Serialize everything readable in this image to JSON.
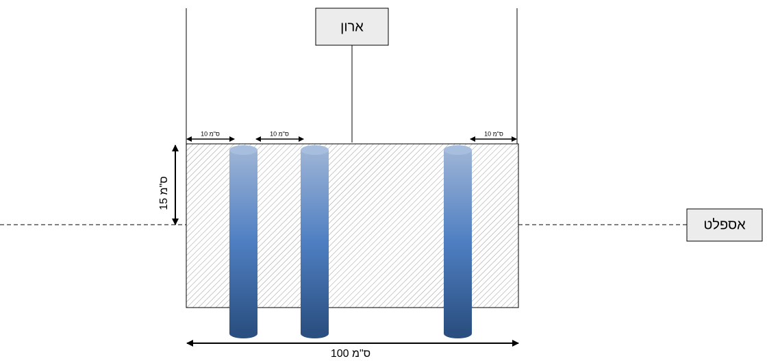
{
  "labels": {
    "cabinet": "ארון",
    "asphalt": "אספלט"
  },
  "dimensions": {
    "top": [
      "10 ס\"מ",
      "10 ס\"מ",
      "10 ס\"מ"
    ],
    "height": "15 ס\"מ",
    "width": "100 ס\"מ"
  }
}
